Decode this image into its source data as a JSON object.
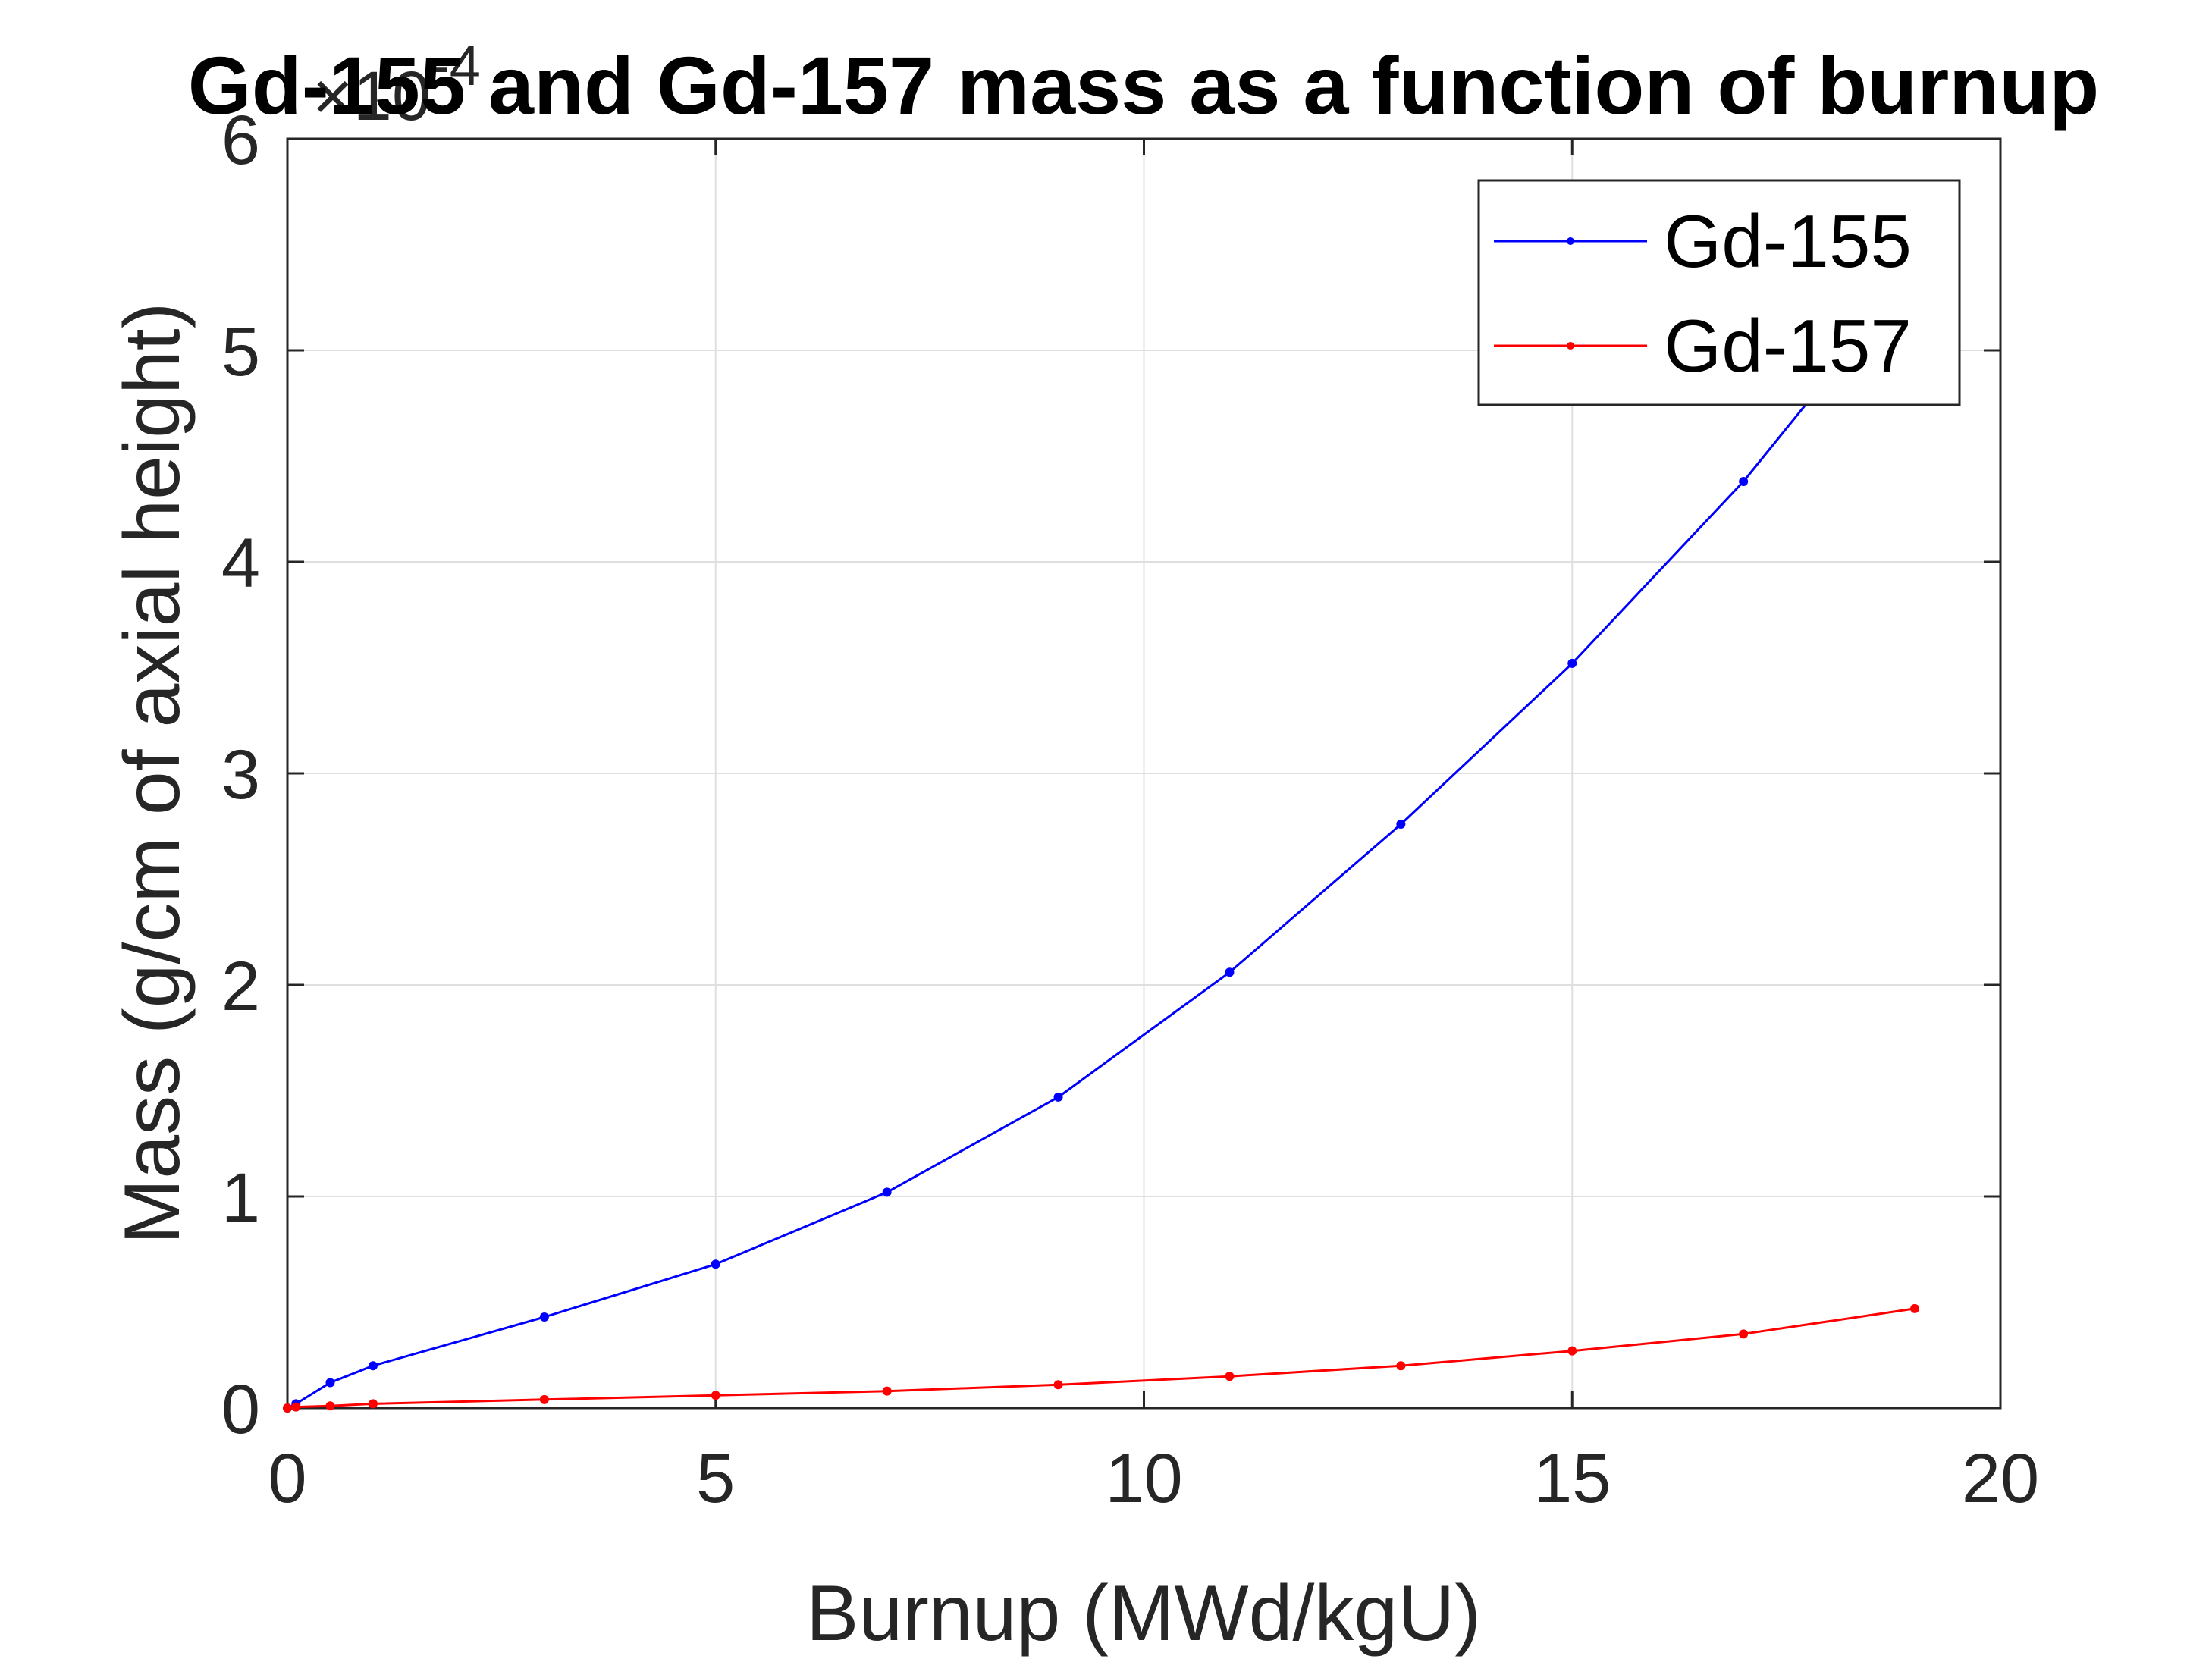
{
  "chart_data": {
    "type": "line",
    "title": "Gd-155 and Gd-157 mass as a function of burnup",
    "xlabel": "Burnup (MWd/kgU)",
    "ylabel": "Mass (g/cm of axial height)",
    "y_exponent_base": "×10",
    "y_exponent_power": "-4",
    "xlim": [
      0,
      20
    ],
    "ylim": [
      0,
      6
    ],
    "x_ticks": [
      0,
      5,
      10,
      15,
      20
    ],
    "y_ticks": [
      0,
      1,
      2,
      3,
      4,
      5,
      6
    ],
    "x_tick_labels": [
      "0",
      "5",
      "10",
      "15",
      "20"
    ],
    "y_tick_labels": [
      "0",
      "1",
      "2",
      "3",
      "4",
      "5",
      "6"
    ],
    "grid": true,
    "legend_position": "top-right",
    "series": [
      {
        "name": "Gd-155",
        "color": "#0000ff",
        "x": [
          0,
          0.1,
          0.5,
          1,
          3,
          5,
          7,
          9,
          11,
          13,
          15,
          17,
          19
        ],
        "y": [
          0.0,
          0.02,
          0.12,
          0.2,
          0.43,
          0.68,
          1.02,
          1.47,
          2.06,
          2.76,
          3.52,
          4.38,
          5.38
        ]
      },
      {
        "name": "Gd-157",
        "color": "#ff0000",
        "x": [
          0,
          0.1,
          0.5,
          1,
          3,
          5,
          7,
          9,
          11,
          13,
          15,
          17,
          19
        ],
        "y": [
          0.0,
          0.005,
          0.01,
          0.02,
          0.04,
          0.06,
          0.08,
          0.11,
          0.15,
          0.2,
          0.27,
          0.35,
          0.47
        ]
      }
    ]
  }
}
